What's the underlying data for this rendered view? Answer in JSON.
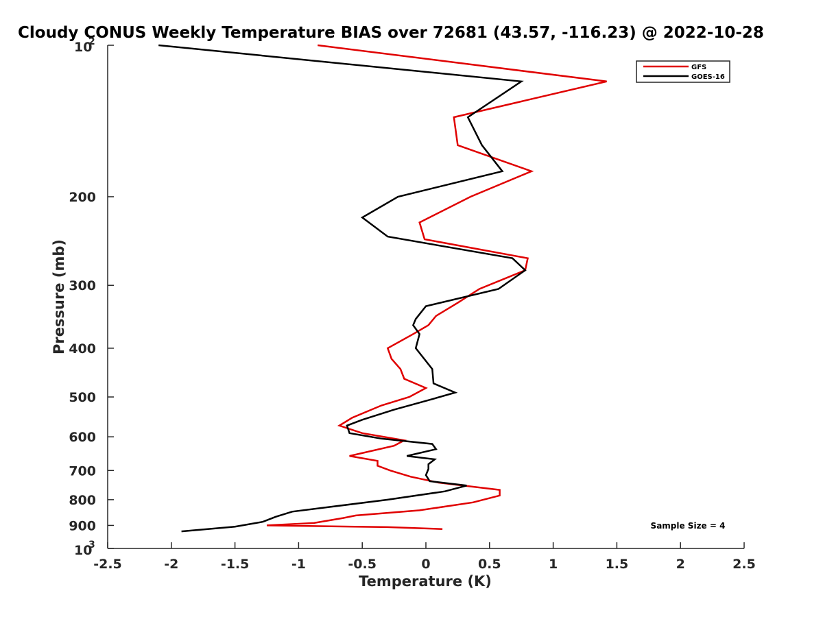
{
  "chart_data": {
    "type": "line",
    "title": "Cloudy CONUS Weekly Temperature BIAS over 72681 (43.57, -116.23) @ 2022-10-28",
    "xlabel": "Temperature (K)",
    "ylabel": "Pressure (mb)",
    "xlim": [
      -2.5,
      2.5
    ],
    "ylim": [
      100,
      1000
    ],
    "y_scale": "log",
    "y_reversed": true,
    "grid": false,
    "legend_position": "top-right",
    "x_ticks": [
      "-2.5",
      "-2",
      "-1.5",
      "-1",
      "-0.5",
      "0",
      "0.5",
      "1",
      "1.5",
      "2",
      "2.5"
    ],
    "y_ticks": [
      {
        "value": 100,
        "base": "10",
        "exp": "2"
      },
      {
        "value": 200,
        "label": "200"
      },
      {
        "value": 300,
        "label": "300"
      },
      {
        "value": 400,
        "label": "400"
      },
      {
        "value": 500,
        "label": "500"
      },
      {
        "value": 600,
        "label": "600"
      },
      {
        "value": 700,
        "label": "700"
      },
      {
        "value": 800,
        "label": "800"
      },
      {
        "value": 900,
        "label": "900"
      },
      {
        "value": 1000,
        "base": "10",
        "exp": "3"
      }
    ],
    "annotation": "Sample Size = 4",
    "series": [
      {
        "name": "GFS",
        "color": "#e00000",
        "points": [
          [
            -0.85,
            100
          ],
          [
            1.42,
            118
          ],
          [
            0.22,
            139
          ],
          [
            0.25,
            158
          ],
          [
            0.83,
            178
          ],
          [
            0.35,
            200
          ],
          [
            -0.05,
            225
          ],
          [
            -0.01,
            243
          ],
          [
            0.8,
            265
          ],
          [
            0.78,
            280
          ],
          [
            0.42,
            305
          ],
          [
            0.25,
            325
          ],
          [
            0.08,
            345
          ],
          [
            0.02,
            360
          ],
          [
            -0.1,
            375
          ],
          [
            -0.3,
            400
          ],
          [
            -0.27,
            420
          ],
          [
            -0.2,
            440
          ],
          [
            -0.17,
            460
          ],
          [
            0.0,
            480
          ],
          [
            -0.13,
            500
          ],
          [
            -0.35,
            520
          ],
          [
            -0.58,
            550
          ],
          [
            -0.68,
            570
          ],
          [
            -0.5,
            590
          ],
          [
            -0.17,
            610
          ],
          [
            -0.25,
            625
          ],
          [
            -0.6,
            655
          ],
          [
            -0.38,
            670
          ],
          [
            -0.38,
            685
          ],
          [
            -0.28,
            700
          ],
          [
            -0.12,
            720
          ],
          [
            0.1,
            740
          ],
          [
            0.58,
            765
          ],
          [
            0.58,
            785
          ],
          [
            0.37,
            810
          ],
          [
            -0.05,
            840
          ],
          [
            -0.55,
            860
          ],
          [
            -0.65,
            870
          ],
          [
            -0.88,
            890
          ],
          [
            -1.25,
            900
          ],
          [
            -0.3,
            907
          ],
          [
            0.13,
            915
          ]
        ]
      },
      {
        "name": "GOES-16",
        "color": "#000000",
        "points": [
          [
            -2.1,
            100
          ],
          [
            0.75,
            118
          ],
          [
            0.33,
            139
          ],
          [
            0.44,
            158
          ],
          [
            0.6,
            178
          ],
          [
            -0.22,
            200
          ],
          [
            -0.5,
            220
          ],
          [
            -0.3,
            240
          ],
          [
            0.68,
            265
          ],
          [
            0.78,
            280
          ],
          [
            0.57,
            305
          ],
          [
            0.0,
            330
          ],
          [
            -0.08,
            350
          ],
          [
            -0.1,
            360
          ],
          [
            -0.05,
            375
          ],
          [
            -0.08,
            400
          ],
          [
            0.05,
            440
          ],
          [
            0.06,
            470
          ],
          [
            0.23,
            490
          ],
          [
            0.05,
            505
          ],
          [
            -0.25,
            530
          ],
          [
            -0.5,
            555
          ],
          [
            -0.62,
            570
          ],
          [
            -0.6,
            590
          ],
          [
            -0.35,
            605
          ],
          [
            0.05,
            620
          ],
          [
            0.08,
            635
          ],
          [
            -0.15,
            655
          ],
          [
            0.07,
            665
          ],
          [
            0.02,
            680
          ],
          [
            0.02,
            695
          ],
          [
            0.0,
            715
          ],
          [
            0.03,
            735
          ],
          [
            0.32,
            750
          ],
          [
            0.15,
            770
          ],
          [
            -0.3,
            800
          ],
          [
            -1.05,
            845
          ],
          [
            -1.18,
            865
          ],
          [
            -1.28,
            885
          ],
          [
            -1.5,
            905
          ],
          [
            -1.92,
            925
          ]
        ]
      }
    ]
  }
}
